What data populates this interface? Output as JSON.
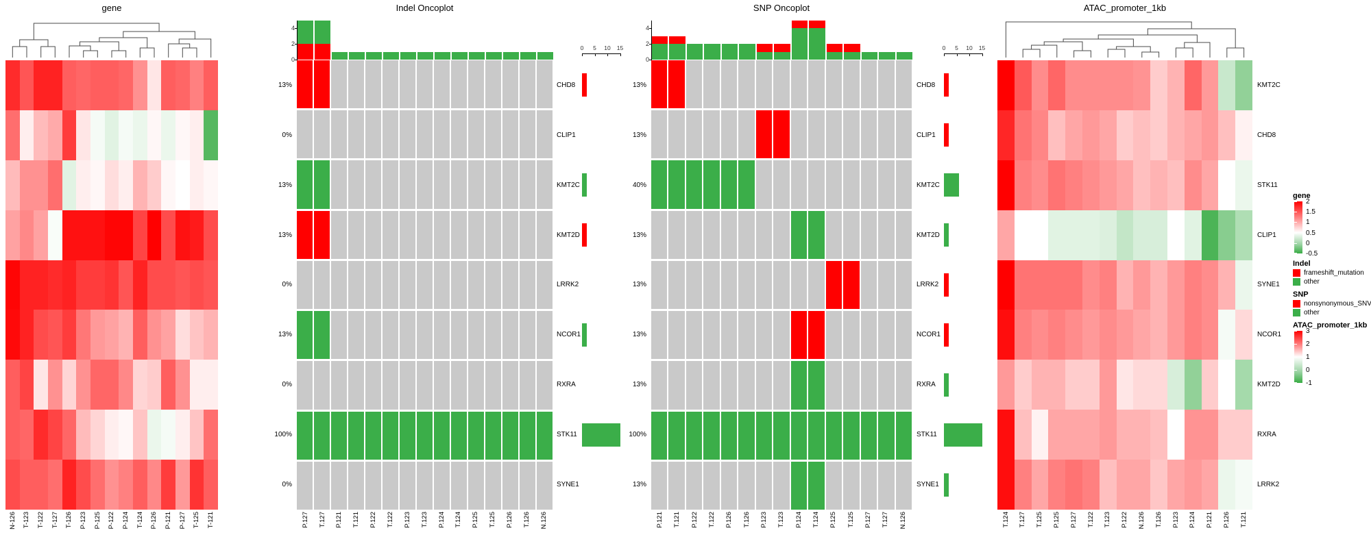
{
  "colors": {
    "mutation_red": "#FF0000",
    "mutation_green": "#3BAE49",
    "oncoplot_empty": "#C9C9C9",
    "heatmap_max_red": "#FF0000",
    "heatmap_mid_white": "#FFFFFF",
    "heatmap_min_green": "#38AC44"
  },
  "chart_data": [
    {
      "type": "heatmap",
      "title": "gene",
      "has_column_dendrogram": true,
      "columns": [
        "N-126",
        "T-123",
        "T-122",
        "T-127",
        "T-126",
        "P-123",
        "P-125",
        "P-122",
        "P-124",
        "T-124",
        "P-126",
        "P-121",
        "P-127",
        "T-125",
        "T-121"
      ],
      "rows": [],
      "colorscale": {
        "min": -0.5,
        "mid": 0.5,
        "max": 2
      },
      "values": [
        [
          1.75,
          1.5,
          1.8,
          1.8,
          1.45,
          1.4,
          1.45,
          1.45,
          1.4,
          1.15,
          0.65,
          1.45,
          1.4,
          1.25,
          1.45
        ],
        [
          1.35,
          0.6,
          0.9,
          1.0,
          1.65,
          0.65,
          0.45,
          0.35,
          0.45,
          0.4,
          0.55,
          0.4,
          0.55,
          0.6,
          -0.35
        ],
        [
          0.9,
          1.15,
          1.15,
          1.35,
          0.35,
          0.6,
          0.55,
          0.7,
          0.6,
          0.95,
          0.8,
          0.55,
          0.5,
          0.6,
          0.55
        ],
        [
          1.05,
          1.2,
          1.05,
          0.47,
          1.9,
          1.9,
          1.9,
          1.97,
          1.97,
          1.6,
          2.0,
          1.55,
          1.9,
          1.85,
          1.55
        ],
        [
          1.97,
          1.8,
          1.8,
          1.75,
          1.8,
          1.65,
          1.65,
          1.7,
          1.5,
          1.8,
          1.55,
          1.55,
          1.5,
          1.55,
          1.5
        ],
        [
          1.95,
          1.8,
          1.55,
          1.5,
          1.65,
          1.3,
          1.1,
          1.05,
          0.95,
          1.45,
          1.15,
          1.05,
          0.7,
          0.85,
          0.95
        ],
        [
          1.45,
          1.6,
          0.65,
          1.15,
          0.75,
          1.15,
          1.4,
          1.4,
          1.2,
          0.75,
          0.8,
          1.45,
          1.15,
          0.6,
          0.6
        ],
        [
          1.45,
          1.4,
          1.75,
          1.6,
          1.4,
          0.9,
          0.75,
          0.6,
          0.55,
          0.85,
          0.4,
          0.45,
          0.6,
          0.85,
          1.35
        ],
        [
          1.55,
          1.45,
          1.45,
          1.35,
          1.8,
          1.55,
          1.35,
          1.15,
          1.25,
          1.45,
          1.2,
          1.65,
          1.1,
          1.7,
          1.45
        ]
      ]
    },
    {
      "type": "oncoplot",
      "title": "Indel Oncoplot",
      "columns": [
        "P.127",
        "T.127",
        "P.121",
        "T.121",
        "P.122",
        "T.122",
        "P.123",
        "T.123",
        "P.124",
        "T.124",
        "P.125",
        "T.125",
        "P.126",
        "T.126",
        "N.126"
      ],
      "genes": [
        "CHD8",
        "CLIP1",
        "KMT2C",
        "KMT2D",
        "LRRK2",
        "NCOR1",
        "RXRA",
        "STK11",
        "SYNE1"
      ],
      "percentages": [
        "13%",
        "0%",
        "13%",
        "13%",
        "0%",
        "13%",
        "0%",
        "100%",
        "0%"
      ],
      "cell_codes": {
        "R": "frameshift_mutation",
        "G": "other",
        ".": "none"
      },
      "cells": [
        "RR.............",
        "...............",
        "GG.............",
        "RR.............",
        "...............",
        "GG.............",
        "...............",
        "GGGGGGGGGGGGGGG",
        "..............."
      ],
      "top_axis_ticks": [
        0,
        2,
        4
      ],
      "stack_bottom": "red",
      "top_bars": [
        {
          "red": 2,
          "green": 3
        },
        {
          "red": 2,
          "green": 3
        },
        {
          "green": 1
        },
        {
          "green": 1
        },
        {
          "green": 1
        },
        {
          "green": 1
        },
        {
          "green": 1
        },
        {
          "green": 1
        },
        {
          "green": 1
        },
        {
          "green": 1
        },
        {
          "green": 1
        },
        {
          "green": 1
        },
        {
          "green": 1
        },
        {
          "green": 1
        },
        {
          "green": 1
        }
      ],
      "right_axis_ticks": [
        0,
        5,
        10,
        15
      ],
      "right_bars": [
        {
          "value": 2,
          "color": "red"
        },
        {
          "value": 0,
          "color": "none"
        },
        {
          "value": 2,
          "color": "green"
        },
        {
          "value": 2,
          "color": "red"
        },
        {
          "value": 0,
          "color": "none"
        },
        {
          "value": 2,
          "color": "green"
        },
        {
          "value": 0,
          "color": "none"
        },
        {
          "value": 15,
          "color": "green"
        },
        {
          "value": 0,
          "color": "none"
        }
      ]
    },
    {
      "type": "oncoplot",
      "title": "SNP Oncoplot",
      "columns": [
        "P.121",
        "T.121",
        "P.122",
        "T.122",
        "P.126",
        "T.126",
        "P.123",
        "T.123",
        "P.124",
        "T.124",
        "P.125",
        "T.125",
        "P.127",
        "T.127",
        "N.126"
      ],
      "genes": [
        "CHD8",
        "CLIP1",
        "KMT2C",
        "KMT2D",
        "LRRK2",
        "NCOR1",
        "RXRA",
        "STK11",
        "SYNE1"
      ],
      "percentages": [
        "13%",
        "13%",
        "40%",
        "13%",
        "13%",
        "13%",
        "13%",
        "100%",
        "13%"
      ],
      "cell_codes": {
        "R": "nonsynonymous_SNV",
        "G": "other",
        ".": "none"
      },
      "cells": [
        "RR.............",
        "......RR.......",
        "GGGGGG.........",
        "........GG.....",
        "..........RR...",
        "........RR.....",
        "........GG.....",
        "GGGGGGGGGGGGGGG",
        "........GG....."
      ],
      "top_axis_ticks": [
        0,
        2,
        4
      ],
      "stack_bottom": "green",
      "top_bars": [
        {
          "green": 2,
          "red": 1
        },
        {
          "green": 2,
          "red": 1
        },
        {
          "green": 2
        },
        {
          "green": 2
        },
        {
          "green": 2
        },
        {
          "green": 2
        },
        {
          "green": 1,
          "red": 1
        },
        {
          "green": 1,
          "red": 1
        },
        {
          "green": 4,
          "red": 1
        },
        {
          "green": 4,
          "red": 1
        },
        {
          "green": 1,
          "red": 1
        },
        {
          "green": 1,
          "red": 1
        },
        {
          "green": 1
        },
        {
          "green": 1
        },
        {
          "green": 1
        }
      ],
      "right_axis_ticks": [
        0,
        5,
        10,
        15
      ],
      "right_bars": [
        {
          "value": 2,
          "color": "red"
        },
        {
          "value": 2,
          "color": "red"
        },
        {
          "value": 6,
          "color": "green"
        },
        {
          "value": 2,
          "color": "green"
        },
        {
          "value": 2,
          "color": "red"
        },
        {
          "value": 2,
          "color": "red"
        },
        {
          "value": 2,
          "color": "green"
        },
        {
          "value": 15,
          "color": "green"
        },
        {
          "value": 2,
          "color": "green"
        }
      ]
    },
    {
      "type": "heatmap",
      "title": "ATAC_promoter_1kb",
      "has_column_dendrogram": true,
      "columns": [
        "T.124",
        "T.127",
        "T.125",
        "P.125",
        "P.127",
        "T.122",
        "T.123",
        "P.122",
        "N.126",
        "T.126",
        "P.123",
        "P.124",
        "P.121",
        "P.126",
        "T.121"
      ],
      "rows": [
        "KMT2C",
        "CHD8",
        "STK11",
        "CLIP1",
        "SYNE1",
        "NCOR1",
        "KMT2D",
        "RXRA",
        "LRRK2"
      ],
      "colorscale": {
        "min": -1,
        "mid": 1,
        "max": 3
      },
      "values": [
        [
          3.0,
          2.3,
          1.9,
          2.2,
          1.9,
          1.9,
          1.9,
          1.9,
          1.85,
          1.4,
          1.6,
          2.2,
          1.8,
          0.45,
          -0.1
        ],
        [
          2.7,
          2.1,
          1.95,
          1.5,
          1.7,
          1.8,
          1.7,
          1.4,
          1.5,
          1.4,
          1.6,
          1.7,
          1.8,
          1.5,
          1.1
        ],
        [
          3.0,
          2.0,
          1.9,
          2.1,
          2.0,
          1.9,
          1.8,
          1.7,
          1.5,
          1.6,
          1.5,
          1.9,
          1.7,
          1.0,
          0.8
        ],
        [
          1.7,
          1.0,
          1.0,
          0.7,
          0.7,
          0.7,
          0.65,
          0.4,
          0.6,
          0.6,
          1.0,
          0.7,
          -0.8,
          -0.2,
          0.2
        ],
        [
          3.0,
          2.1,
          2.1,
          2.1,
          2.1,
          1.9,
          2.0,
          1.6,
          1.8,
          1.6,
          1.8,
          2.0,
          1.9,
          1.6,
          0.8
        ],
        [
          2.9,
          2.0,
          1.9,
          2.0,
          1.9,
          1.8,
          1.9,
          1.8,
          1.7,
          1.6,
          1.8,
          2.0,
          1.9,
          0.9,
          1.3
        ],
        [
          1.8,
          1.4,
          1.6,
          1.6,
          1.4,
          1.4,
          1.8,
          1.2,
          1.3,
          1.3,
          0.6,
          -0.1,
          1.4,
          1.0,
          0.1
        ],
        [
          2.9,
          1.5,
          1.1,
          1.7,
          1.7,
          1.7,
          1.8,
          1.6,
          1.6,
          1.5,
          1.0,
          1.85,
          1.85,
          1.4,
          1.4
        ],
        [
          2.9,
          2.0,
          1.7,
          2.0,
          2.1,
          2.0,
          1.5,
          1.7,
          1.7,
          1.45,
          1.7,
          1.8,
          1.7,
          0.8,
          0.9
        ]
      ]
    }
  ],
  "legends": {
    "gene": {
      "title": "gene",
      "ticks": [
        "2",
        "1.5",
        "1",
        "0.5",
        "0",
        "-0.5"
      ]
    },
    "indel": {
      "title": "Indel",
      "items": [
        {
          "label": "frameshift_mutation",
          "color": "#FF0000"
        },
        {
          "label": "other",
          "color": "#3BAE49"
        }
      ]
    },
    "snp": {
      "title": "SNP",
      "items": [
        {
          "label": "nonsynonymous_SNV",
          "color": "#FF0000"
        },
        {
          "label": "other",
          "color": "#3BAE49"
        }
      ]
    },
    "atac": {
      "title": "ATAC_promoter_1kb",
      "ticks": [
        "3",
        "2",
        "1",
        "0",
        "-1"
      ]
    }
  }
}
